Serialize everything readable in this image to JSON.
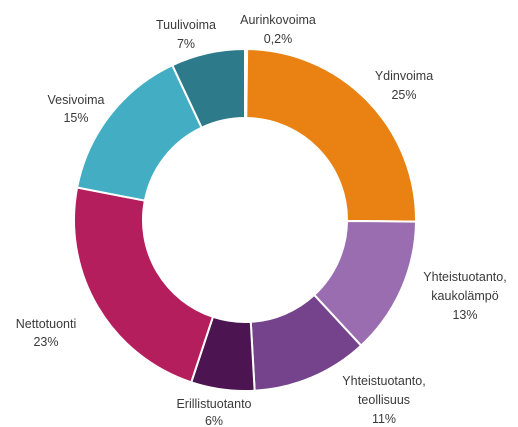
{
  "chart_data": {
    "type": "pie",
    "donut": true,
    "title": "",
    "unit": "%",
    "series": [
      {
        "name": "Aurinkovoima",
        "value": 0.2,
        "value_label": "0,2%",
        "color": "#e8c07a"
      },
      {
        "name": "Ydinvoima",
        "value": 25,
        "value_label": "25%",
        "color": "#e98213"
      },
      {
        "name": "Yhteistuotanto, kaukolämpö",
        "value": 13,
        "value_label": "13%",
        "color": "#9a6db1"
      },
      {
        "name": "Yhteistuotanto, teollisuus",
        "value": 11,
        "value_label": "11%",
        "color": "#74438c"
      },
      {
        "name": "Erillistuotanto",
        "value": 6,
        "value_label": "6%",
        "color": "#4c1450"
      },
      {
        "name": "Nettotuonti",
        "value": 23,
        "value_label": "23%",
        "color": "#b51e5c"
      },
      {
        "name": "Vesivoima",
        "value": 15,
        "value_label": "15%",
        "color": "#43aec3"
      },
      {
        "name": "Tuulivoima",
        "value": 7,
        "value_label": "7%",
        "color": "#2d7a8a"
      }
    ]
  }
}
